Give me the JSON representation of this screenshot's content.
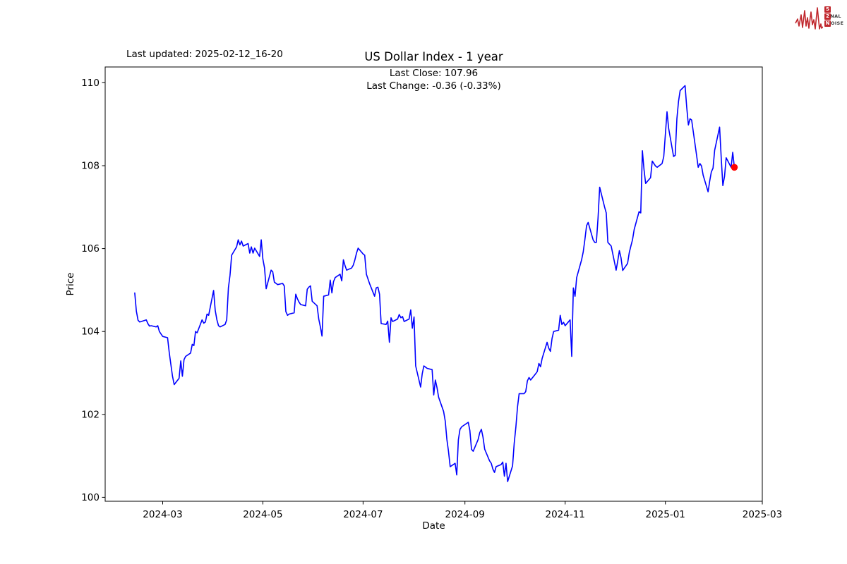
{
  "header": {
    "last_updated": "Last updated: 2025-02-12_16-20",
    "title": "US Dollar Index - 1 year",
    "subtitle_close": "Last Close: 107.96",
    "subtitle_change": "Last Change: -0.36 (-0.33%)"
  },
  "logo": {
    "color": "#c0272d",
    "rows": [
      {
        "initial": "S",
        "rest": "IGNAL"
      },
      {
        "initial": "2",
        "rest": ""
      },
      {
        "initial": "N",
        "rest": "OISE"
      }
    ]
  },
  "chart_data": {
    "type": "line",
    "title": "US Dollar Index - 1 year",
    "xlabel": "Date",
    "ylabel": "Price",
    "grid": false,
    "legend": "none",
    "line_color": "#0000ff",
    "marker_color": "#ff0000",
    "last_close": 107.96,
    "last_change": "-0.36 (-0.33%)",
    "xlim": [
      "2024-01-26",
      "2025-03-01"
    ],
    "ylim": [
      99.905,
      110.38
    ],
    "x_ticks": [
      {
        "date": "2024-03-01",
        "label": "2024-03"
      },
      {
        "date": "2024-05-01",
        "label": "2024-05"
      },
      {
        "date": "2024-07-01",
        "label": "2024-07"
      },
      {
        "date": "2024-09-01",
        "label": "2024-09"
      },
      {
        "date": "2024-11-01",
        "label": "2024-11"
      },
      {
        "date": "2025-01-01",
        "label": "2025-01"
      },
      {
        "date": "2025-03-01",
        "label": "2025-03"
      }
    ],
    "y_ticks": [
      100,
      102,
      104,
      106,
      108,
      110
    ],
    "last_point": {
      "date": "2025-02-12",
      "value": 107.96
    },
    "series": [
      {
        "name": "US Dollar Index",
        "points": [
          [
            "2024-02-13",
            104.93
          ],
          [
            "2024-02-14",
            104.49
          ],
          [
            "2024-02-15",
            104.27
          ],
          [
            "2024-02-16",
            104.23
          ],
          [
            "2024-02-20",
            104.28
          ],
          [
            "2024-02-21",
            104.19
          ],
          [
            "2024-02-22",
            104.13
          ],
          [
            "2024-02-23",
            104.14
          ],
          [
            "2024-02-26",
            104.11
          ],
          [
            "2024-02-27",
            104.14
          ],
          [
            "2024-02-28",
            104.0
          ],
          [
            "2024-02-29",
            103.94
          ],
          [
            "2024-03-01",
            103.88
          ],
          [
            "2024-03-04",
            103.85
          ],
          [
            "2024-03-05",
            103.49
          ],
          [
            "2024-03-06",
            103.2
          ],
          [
            "2024-03-07",
            102.92
          ],
          [
            "2024-03-08",
            102.72
          ],
          [
            "2024-03-11",
            102.87
          ],
          [
            "2024-03-12",
            103.29
          ],
          [
            "2024-03-13",
            102.92
          ],
          [
            "2024-03-14",
            103.32
          ],
          [
            "2024-03-15",
            103.4
          ],
          [
            "2024-03-18",
            103.48
          ],
          [
            "2024-03-19",
            103.69
          ],
          [
            "2024-03-20",
            103.66
          ],
          [
            "2024-03-21",
            104.0
          ],
          [
            "2024-03-22",
            103.97
          ],
          [
            "2024-03-25",
            104.28
          ],
          [
            "2024-03-26",
            104.2
          ],
          [
            "2024-03-27",
            104.23
          ],
          [
            "2024-03-28",
            104.42
          ],
          [
            "2024-03-29",
            104.39
          ],
          [
            "2024-04-01",
            104.99
          ],
          [
            "2024-04-02",
            104.51
          ],
          [
            "2024-04-03",
            104.28
          ],
          [
            "2024-04-04",
            104.14
          ],
          [
            "2024-04-05",
            104.11
          ],
          [
            "2024-04-08",
            104.17
          ],
          [
            "2024-04-09",
            104.28
          ],
          [
            "2024-04-10",
            105.05
          ],
          [
            "2024-04-11",
            105.36
          ],
          [
            "2024-04-12",
            105.84
          ],
          [
            "2024-04-15",
            106.04
          ],
          [
            "2024-04-16",
            106.21
          ],
          [
            "2024-04-17",
            106.09
          ],
          [
            "2024-04-18",
            106.18
          ],
          [
            "2024-04-19",
            106.06
          ],
          [
            "2024-04-22",
            106.12
          ],
          [
            "2024-04-23",
            105.89
          ],
          [
            "2024-04-24",
            106.04
          ],
          [
            "2024-04-25",
            105.89
          ],
          [
            "2024-04-26",
            106.01
          ],
          [
            "2024-04-29",
            105.81
          ],
          [
            "2024-04-30",
            106.21
          ],
          [
            "2024-05-01",
            105.75
          ],
          [
            "2024-05-02",
            105.53
          ],
          [
            "2024-05-03",
            105.03
          ],
          [
            "2024-05-06",
            105.48
          ],
          [
            "2024-05-07",
            105.44
          ],
          [
            "2024-05-08",
            105.19
          ],
          [
            "2024-05-09",
            105.16
          ],
          [
            "2024-05-10",
            105.13
          ],
          [
            "2024-05-13",
            105.16
          ],
          [
            "2024-05-14",
            105.1
          ],
          [
            "2024-05-15",
            104.48
          ],
          [
            "2024-05-16",
            104.39
          ],
          [
            "2024-05-17",
            104.42
          ],
          [
            "2024-05-20",
            104.45
          ],
          [
            "2024-05-21",
            104.9
          ],
          [
            "2024-05-22",
            104.79
          ],
          [
            "2024-05-23",
            104.71
          ],
          [
            "2024-05-24",
            104.65
          ],
          [
            "2024-05-27",
            104.62
          ],
          [
            "2024-05-28",
            105.02
          ],
          [
            "2024-05-29",
            105.07
          ],
          [
            "2024-05-30",
            105.1
          ],
          [
            "2024-05-31",
            104.73
          ],
          [
            "2024-06-03",
            104.62
          ],
          [
            "2024-06-04",
            104.3
          ],
          [
            "2024-06-05",
            104.11
          ],
          [
            "2024-06-06",
            103.89
          ],
          [
            "2024-06-07",
            104.85
          ],
          [
            "2024-06-10",
            104.88
          ],
          [
            "2024-06-11",
            105.24
          ],
          [
            "2024-06-12",
            104.93
          ],
          [
            "2024-06-13",
            105.2
          ],
          [
            "2024-06-14",
            105.3
          ],
          [
            "2024-06-17",
            105.38
          ],
          [
            "2024-06-18",
            105.22
          ],
          [
            "2024-06-19",
            105.73
          ],
          [
            "2024-06-20",
            105.59
          ],
          [
            "2024-06-21",
            105.48
          ],
          [
            "2024-06-24",
            105.53
          ],
          [
            "2024-06-25",
            105.6
          ],
          [
            "2024-06-26",
            105.73
          ],
          [
            "2024-06-27",
            105.89
          ],
          [
            "2024-06-28",
            106.01
          ],
          [
            "2024-07-01",
            105.87
          ],
          [
            "2024-07-02",
            105.84
          ],
          [
            "2024-07-03",
            105.38
          ],
          [
            "2024-07-05",
            105.15
          ],
          [
            "2024-07-08",
            104.85
          ],
          [
            "2024-07-09",
            105.05
          ],
          [
            "2024-07-10",
            105.07
          ],
          [
            "2024-07-11",
            104.9
          ],
          [
            "2024-07-12",
            104.19
          ],
          [
            "2024-07-15",
            104.17
          ],
          [
            "2024-07-16",
            104.25
          ],
          [
            "2024-07-17",
            103.74
          ],
          [
            "2024-07-18",
            104.33
          ],
          [
            "2024-07-19",
            104.24
          ],
          [
            "2024-07-22",
            104.3
          ],
          [
            "2024-07-23",
            104.41
          ],
          [
            "2024-07-24",
            104.33
          ],
          [
            "2024-07-25",
            104.36
          ],
          [
            "2024-07-26",
            104.24
          ],
          [
            "2024-07-29",
            104.3
          ],
          [
            "2024-07-30",
            104.52
          ],
          [
            "2024-07-31",
            104.08
          ],
          [
            "2024-08-01",
            104.35
          ],
          [
            "2024-08-02",
            103.17
          ],
          [
            "2024-08-05",
            102.66
          ],
          [
            "2024-08-06",
            102.98
          ],
          [
            "2024-08-07",
            103.17
          ],
          [
            "2024-08-08",
            103.14
          ],
          [
            "2024-08-09",
            103.11
          ],
          [
            "2024-08-12",
            103.08
          ],
          [
            "2024-08-13",
            102.47
          ],
          [
            "2024-08-14",
            102.83
          ],
          [
            "2024-08-15",
            102.64
          ],
          [
            "2024-08-16",
            102.41
          ],
          [
            "2024-08-19",
            102.07
          ],
          [
            "2024-08-20",
            101.84
          ],
          [
            "2024-08-21",
            101.4
          ],
          [
            "2024-08-22",
            101.11
          ],
          [
            "2024-08-23",
            100.74
          ],
          [
            "2024-08-26",
            100.82
          ],
          [
            "2024-08-27",
            100.54
          ],
          [
            "2024-08-28",
            101.39
          ],
          [
            "2024-08-29",
            101.64
          ],
          [
            "2024-08-30",
            101.7
          ],
          [
            "2024-09-03",
            101.81
          ],
          [
            "2024-09-04",
            101.61
          ],
          [
            "2024-09-05",
            101.16
          ],
          [
            "2024-09-06",
            101.11
          ],
          [
            "2024-09-09",
            101.39
          ],
          [
            "2024-09-10",
            101.56
          ],
          [
            "2024-09-11",
            101.64
          ],
          [
            "2024-09-12",
            101.45
          ],
          [
            "2024-09-13",
            101.16
          ],
          [
            "2024-09-16",
            100.88
          ],
          [
            "2024-09-17",
            100.82
          ],
          [
            "2024-09-18",
            100.68
          ],
          [
            "2024-09-19",
            100.6
          ],
          [
            "2024-09-20",
            100.74
          ],
          [
            "2024-09-23",
            100.79
          ],
          [
            "2024-09-24",
            100.85
          ],
          [
            "2024-09-25",
            100.51
          ],
          [
            "2024-09-26",
            100.82
          ],
          [
            "2024-09-27",
            100.38
          ],
          [
            "2024-09-30",
            100.76
          ],
          [
            "2024-10-01",
            101.3
          ],
          [
            "2024-10-02",
            101.7
          ],
          [
            "2024-10-03",
            102.18
          ],
          [
            "2024-10-04",
            102.5
          ],
          [
            "2024-10-07",
            102.5
          ],
          [
            "2024-10-08",
            102.55
          ],
          [
            "2024-10-09",
            102.81
          ],
          [
            "2024-10-10",
            102.89
          ],
          [
            "2024-10-11",
            102.83
          ],
          [
            "2024-10-14",
            102.98
          ],
          [
            "2024-10-15",
            103.03
          ],
          [
            "2024-10-16",
            103.23
          ],
          [
            "2024-10-17",
            103.15
          ],
          [
            "2024-10-18",
            103.35
          ],
          [
            "2024-10-21",
            103.74
          ],
          [
            "2024-10-22",
            103.6
          ],
          [
            "2024-10-23",
            103.52
          ],
          [
            "2024-10-24",
            103.83
          ],
          [
            "2024-10-25",
            104.0
          ],
          [
            "2024-10-28",
            104.03
          ],
          [
            "2024-10-29",
            104.39
          ],
          [
            "2024-10-30",
            104.17
          ],
          [
            "2024-10-31",
            104.22
          ],
          [
            "2024-11-01",
            104.14
          ],
          [
            "2024-11-04",
            104.28
          ],
          [
            "2024-11-05",
            103.4
          ],
          [
            "2024-11-06",
            105.05
          ],
          [
            "2024-11-07",
            104.85
          ],
          [
            "2024-11-08",
            105.3
          ],
          [
            "2024-11-11",
            105.73
          ],
          [
            "2024-11-12",
            105.92
          ],
          [
            "2024-11-13",
            106.21
          ],
          [
            "2024-11-14",
            106.55
          ],
          [
            "2024-11-15",
            106.63
          ],
          [
            "2024-11-18",
            106.21
          ],
          [
            "2024-11-19",
            106.15
          ],
          [
            "2024-11-20",
            106.15
          ],
          [
            "2024-11-21",
            106.74
          ],
          [
            "2024-11-22",
            107.48
          ],
          [
            "2024-11-25",
            107.0
          ],
          [
            "2024-11-26",
            106.86
          ],
          [
            "2024-11-27",
            106.15
          ],
          [
            "2024-11-29",
            106.06
          ],
          [
            "2024-12-02",
            105.48
          ],
          [
            "2024-12-03",
            105.7
          ],
          [
            "2024-12-04",
            105.95
          ],
          [
            "2024-12-05",
            105.78
          ],
          [
            "2024-12-06",
            105.47
          ],
          [
            "2024-12-09",
            105.64
          ],
          [
            "2024-12-10",
            105.9
          ],
          [
            "2024-12-11",
            106.06
          ],
          [
            "2024-12-12",
            106.21
          ],
          [
            "2024-12-13",
            106.46
          ],
          [
            "2024-12-16",
            106.89
          ],
          [
            "2024-12-17",
            106.86
          ],
          [
            "2024-12-18",
            108.36
          ],
          [
            "2024-12-19",
            107.91
          ],
          [
            "2024-12-20",
            107.57
          ],
          [
            "2024-12-23",
            107.71
          ],
          [
            "2024-12-24",
            108.11
          ],
          [
            "2024-12-26",
            107.99
          ],
          [
            "2024-12-27",
            107.96
          ],
          [
            "2024-12-30",
            108.05
          ],
          [
            "2024-12-31",
            108.22
          ],
          [
            "2025-01-02",
            109.3
          ],
          [
            "2025-01-03",
            108.9
          ],
          [
            "2025-01-06",
            108.22
          ],
          [
            "2025-01-07",
            108.25
          ],
          [
            "2025-01-08",
            109.13
          ],
          [
            "2025-01-09",
            109.55
          ],
          [
            "2025-01-10",
            109.81
          ],
          [
            "2025-01-13",
            109.93
          ],
          [
            "2025-01-14",
            109.41
          ],
          [
            "2025-01-15",
            108.98
          ],
          [
            "2025-01-16",
            109.13
          ],
          [
            "2025-01-17",
            109.1
          ],
          [
            "2025-01-20",
            108.25
          ],
          [
            "2025-01-21",
            107.96
          ],
          [
            "2025-01-22",
            108.05
          ],
          [
            "2025-01-23",
            107.99
          ],
          [
            "2025-01-24",
            107.77
          ],
          [
            "2025-01-27",
            107.37
          ],
          [
            "2025-01-28",
            107.63
          ],
          [
            "2025-01-29",
            107.85
          ],
          [
            "2025-01-30",
            107.94
          ],
          [
            "2025-01-31",
            108.37
          ],
          [
            "2025-02-03",
            108.93
          ],
          [
            "2025-02-04",
            108.19
          ],
          [
            "2025-02-05",
            107.52
          ],
          [
            "2025-02-06",
            107.74
          ],
          [
            "2025-02-07",
            108.19
          ],
          [
            "2025-02-10",
            107.96
          ],
          [
            "2025-02-11",
            108.32
          ],
          [
            "2025-02-12",
            107.96
          ]
        ]
      }
    ]
  }
}
